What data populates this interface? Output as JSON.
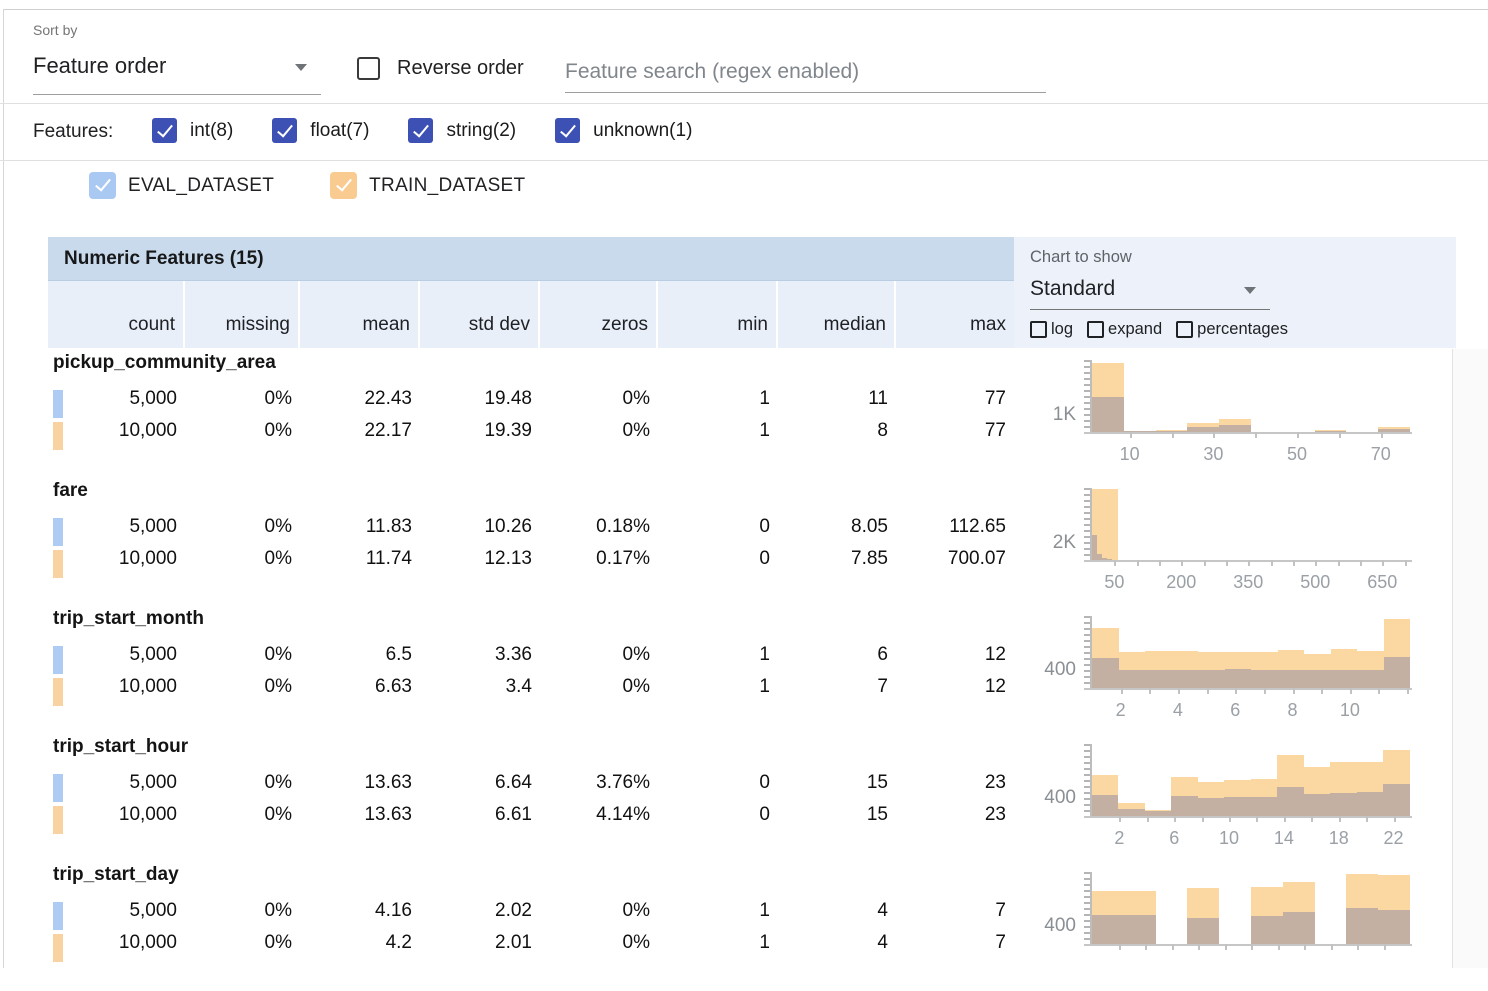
{
  "toolbar": {
    "sort_by_label": "Sort by",
    "sort_by_value": "Feature order",
    "reverse_order_label": "Reverse order",
    "search_placeholder": "Feature search (regex enabled)"
  },
  "features_filter": {
    "label": "Features:",
    "types": [
      {
        "label": "int(8)",
        "checked": true
      },
      {
        "label": "float(7)",
        "checked": true
      },
      {
        "label": "string(2)",
        "checked": true
      },
      {
        "label": "unknown(1)",
        "checked": true
      }
    ]
  },
  "datasets": [
    {
      "name": "EVAL_DATASET",
      "checked": true,
      "color": "#a9c8f2"
    },
    {
      "name": "TRAIN_DATASET",
      "checked": true,
      "color": "#f9cb90"
    }
  ],
  "table": {
    "title": "Numeric Features (15)",
    "columns": [
      "count",
      "missing",
      "mean",
      "std dev",
      "zeros",
      "min",
      "median",
      "max"
    ],
    "rows": [
      {
        "feature": "pickup_community_area",
        "eval": [
          "5,000",
          "0%",
          "22.43",
          "19.48",
          "0%",
          "1",
          "11",
          "77"
        ],
        "train": [
          "10,000",
          "0%",
          "22.17",
          "19.39",
          "0%",
          "1",
          "8",
          "77"
        ]
      },
      {
        "feature": "fare",
        "eval": [
          "5,000",
          "0%",
          "11.83",
          "10.26",
          "0.18%",
          "0",
          "8.05",
          "112.65"
        ],
        "train": [
          "10,000",
          "0%",
          "11.74",
          "12.13",
          "0.17%",
          "0",
          "7.85",
          "700.07"
        ]
      },
      {
        "feature": "trip_start_month",
        "eval": [
          "5,000",
          "0%",
          "6.5",
          "3.36",
          "0%",
          "1",
          "6",
          "12"
        ],
        "train": [
          "10,000",
          "0%",
          "6.63",
          "3.4",
          "0%",
          "1",
          "7",
          "12"
        ]
      },
      {
        "feature": "trip_start_hour",
        "eval": [
          "5,000",
          "0%",
          "13.63",
          "6.64",
          "3.76%",
          "0",
          "15",
          "23"
        ],
        "train": [
          "10,000",
          "0%",
          "13.63",
          "6.61",
          "4.14%",
          "0",
          "15",
          "23"
        ]
      },
      {
        "feature": "trip_start_day",
        "eval": [
          "5,000",
          "0%",
          "4.16",
          "2.02",
          "0%",
          "1",
          "4",
          "7"
        ],
        "train": [
          "10,000",
          "0%",
          "4.2",
          "2.01",
          "0%",
          "1",
          "4",
          "7"
        ]
      }
    ]
  },
  "chart_panel": {
    "label": "Chart to show",
    "selected": "Standard",
    "options": [
      "log",
      "expand",
      "percentages"
    ]
  },
  "chart_data": [
    {
      "type": "bar",
      "feature": "pickup_community_area",
      "series_names": [
        "TRAIN_DATASET",
        "EVAL_DATASET"
      ],
      "ymax": 4200,
      "ylabel": {
        "text": "1K",
        "value": 1000
      },
      "xdomain": [
        1,
        77
      ],
      "xticks_minor": [
        10,
        20,
        30,
        40,
        50,
        60,
        70
      ],
      "xticks_labeled": [
        10,
        30,
        50,
        70
      ],
      "train": {
        "start": 1,
        "binWidth": 7.6,
        "counts": [
          4000,
          60,
          130,
          550,
          780,
          30,
          5,
          90,
          10,
          290
        ]
      },
      "eval": {
        "start": 1,
        "binWidth": 7.6,
        "counts": [
          2050,
          40,
          70,
          280,
          400,
          15,
          0,
          45,
          5,
          150
        ]
      }
    },
    {
      "type": "bar",
      "feature": "fare",
      "series_names": [
        "TRAIN_DATASET",
        "EVAL_DATASET"
      ],
      "ymax": 8400,
      "ylabel": {
        "text": "2K",
        "value": 2000
      },
      "xdomain": [
        0,
        712
      ],
      "xticks_minor": [
        50,
        100,
        150,
        200,
        250,
        300,
        350,
        400,
        450,
        500,
        550,
        600,
        650,
        700
      ],
      "xticks_labeled": [
        50,
        200,
        350,
        500,
        650
      ],
      "train": {
        "start": 0,
        "binWidth": 59.3,
        "counts": [
          8300,
          60,
          15,
          8,
          5,
          3,
          2,
          2,
          1,
          1,
          1,
          2
        ]
      },
      "eval": {
        "start": 0,
        "binWidth": 11.3,
        "counts": [
          2900,
          750,
          280,
          120,
          60,
          30,
          15,
          8,
          4,
          2
        ]
      }
    },
    {
      "type": "bar",
      "feature": "trip_start_month",
      "series_names": [
        "TRAIN_DATASET",
        "EVAL_DATASET"
      ],
      "ymax": 1600,
      "ylabel": {
        "text": "400",
        "value": 400
      },
      "xdomain": [
        1,
        12.1
      ],
      "xticks_minor": [
        2,
        3,
        4,
        5,
        6,
        7,
        8,
        9,
        10,
        11,
        12
      ],
      "xticks_labeled": [
        2,
        4,
        6,
        8,
        10
      ],
      "train": {
        "start": 1,
        "binWidth": 0.925,
        "counts": [
          1330,
          810,
          830,
          820,
          810,
          800,
          790,
          850,
          760,
          870,
          830,
          1530
        ]
      },
      "eval": {
        "start": 1,
        "binWidth": 0.925,
        "counts": [
          660,
          390,
          400,
          400,
          410,
          420,
          395,
          400,
          390,
          400,
          395,
          680
        ]
      }
    },
    {
      "type": "bar",
      "feature": "trip_start_hour",
      "series_names": [
        "TRAIN_DATASET",
        "EVAL_DATASET"
      ],
      "ymax": 1600,
      "ylabel": {
        "text": "400",
        "value": 400
      },
      "xdomain": [
        0,
        23.2
      ],
      "xticks_minor": [
        2,
        4,
        6,
        8,
        10,
        12,
        14,
        16,
        18,
        20,
        22
      ],
      "xticks_labeled": [
        2,
        6,
        10,
        14,
        18,
        22
      ],
      "train": {
        "start": 0,
        "binWidth": 1.933,
        "counts": [
          920,
          300,
          130,
          870,
          760,
          800,
          820,
          1350,
          1090,
          1210,
          1200,
          1460
        ]
      },
      "eval": {
        "start": 0,
        "binWidth": 1.933,
        "counts": [
          470,
          160,
          110,
          440,
          400,
          420,
          430,
          645,
          500,
          520,
          540,
          710
        ]
      }
    },
    {
      "type": "bar",
      "feature": "trip_start_day",
      "series_names": [
        "TRAIN_DATASET",
        "EVAL_DATASET"
      ],
      "ymax": 1600,
      "ylabel": {
        "text": "400",
        "value": 400
      },
      "xdomain": [
        1,
        7.6
      ],
      "xticks_minor": [
        1.55,
        2.1,
        2.65,
        3.2,
        3.75,
        4.3,
        4.85,
        5.4,
        5.95,
        6.5,
        7.05
      ],
      "xticks_labeled": [],
      "train": {
        "start": 1,
        "binWidth": 0.66,
        "counts": [
          1180,
          1180,
          0,
          1240,
          0,
          1260,
          1370,
          0,
          1555,
          1530
        ]
      },
      "eval": {
        "start": 1,
        "binWidth": 0.66,
        "counts": [
          645,
          640,
          0,
          570,
          0,
          630,
          705,
          0,
          790,
          755
        ]
      }
    }
  ],
  "colors": {
    "accent_indigo": "#3d51b5",
    "eval_swatch": "#aecbf4",
    "train_swatch": "#f8d2a0",
    "train_bar": "#fbd8a1",
    "eval_overlap_bar": "#c4afa3",
    "table_title_band": "#c9daec",
    "table_header_band": "#e8eff9",
    "chart_panel_bg": "#edf2fa"
  }
}
